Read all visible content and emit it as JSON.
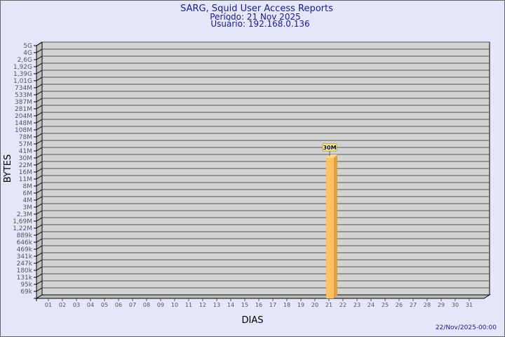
{
  "chart_data": {
    "type": "bar",
    "title": "SARG, Squid User Access Reports",
    "subtitle_period": "Período: 21 Nov 2025",
    "subtitle_user": "Usuário: 192.168.0.136",
    "xlabel": "DIAS",
    "ylabel": "BYTES",
    "y_scale": "log",
    "y_ticks": [
      "5G",
      "4G",
      "2,6G",
      "1,92G",
      "1,39G",
      "1,01G",
      "734M",
      "533M",
      "387M",
      "281M",
      "204M",
      "148M",
      "108M",
      "78M",
      "57M",
      "41M",
      "30M",
      "22M",
      "16M",
      "11M",
      "8M",
      "6M",
      "4M",
      "3M",
      "2,3M",
      "1,69M",
      "1,22M",
      "889k",
      "646k",
      "469k",
      "341k",
      "247k",
      "180k",
      "131k",
      "95k",
      "69k"
    ],
    "categories": [
      "01",
      "02",
      "03",
      "04",
      "05",
      "06",
      "07",
      "08",
      "09",
      "10",
      "11",
      "12",
      "13",
      "14",
      "15",
      "16",
      "17",
      "18",
      "19",
      "20",
      "21",
      "22",
      "23",
      "24",
      "25",
      "26",
      "27",
      "28",
      "29",
      "30",
      "31"
    ],
    "bars": [
      {
        "day": "21",
        "value": "30M"
      }
    ],
    "grid": true,
    "colors": {
      "background": "#e6e6fa",
      "plot": "#d3d3d3",
      "bar": "#ffc060",
      "bar_side": "#e0a040",
      "title": "#1a1a8c",
      "label_box": "#ffffcc"
    },
    "timestamp": "22/Nov/2025-00:00"
  }
}
